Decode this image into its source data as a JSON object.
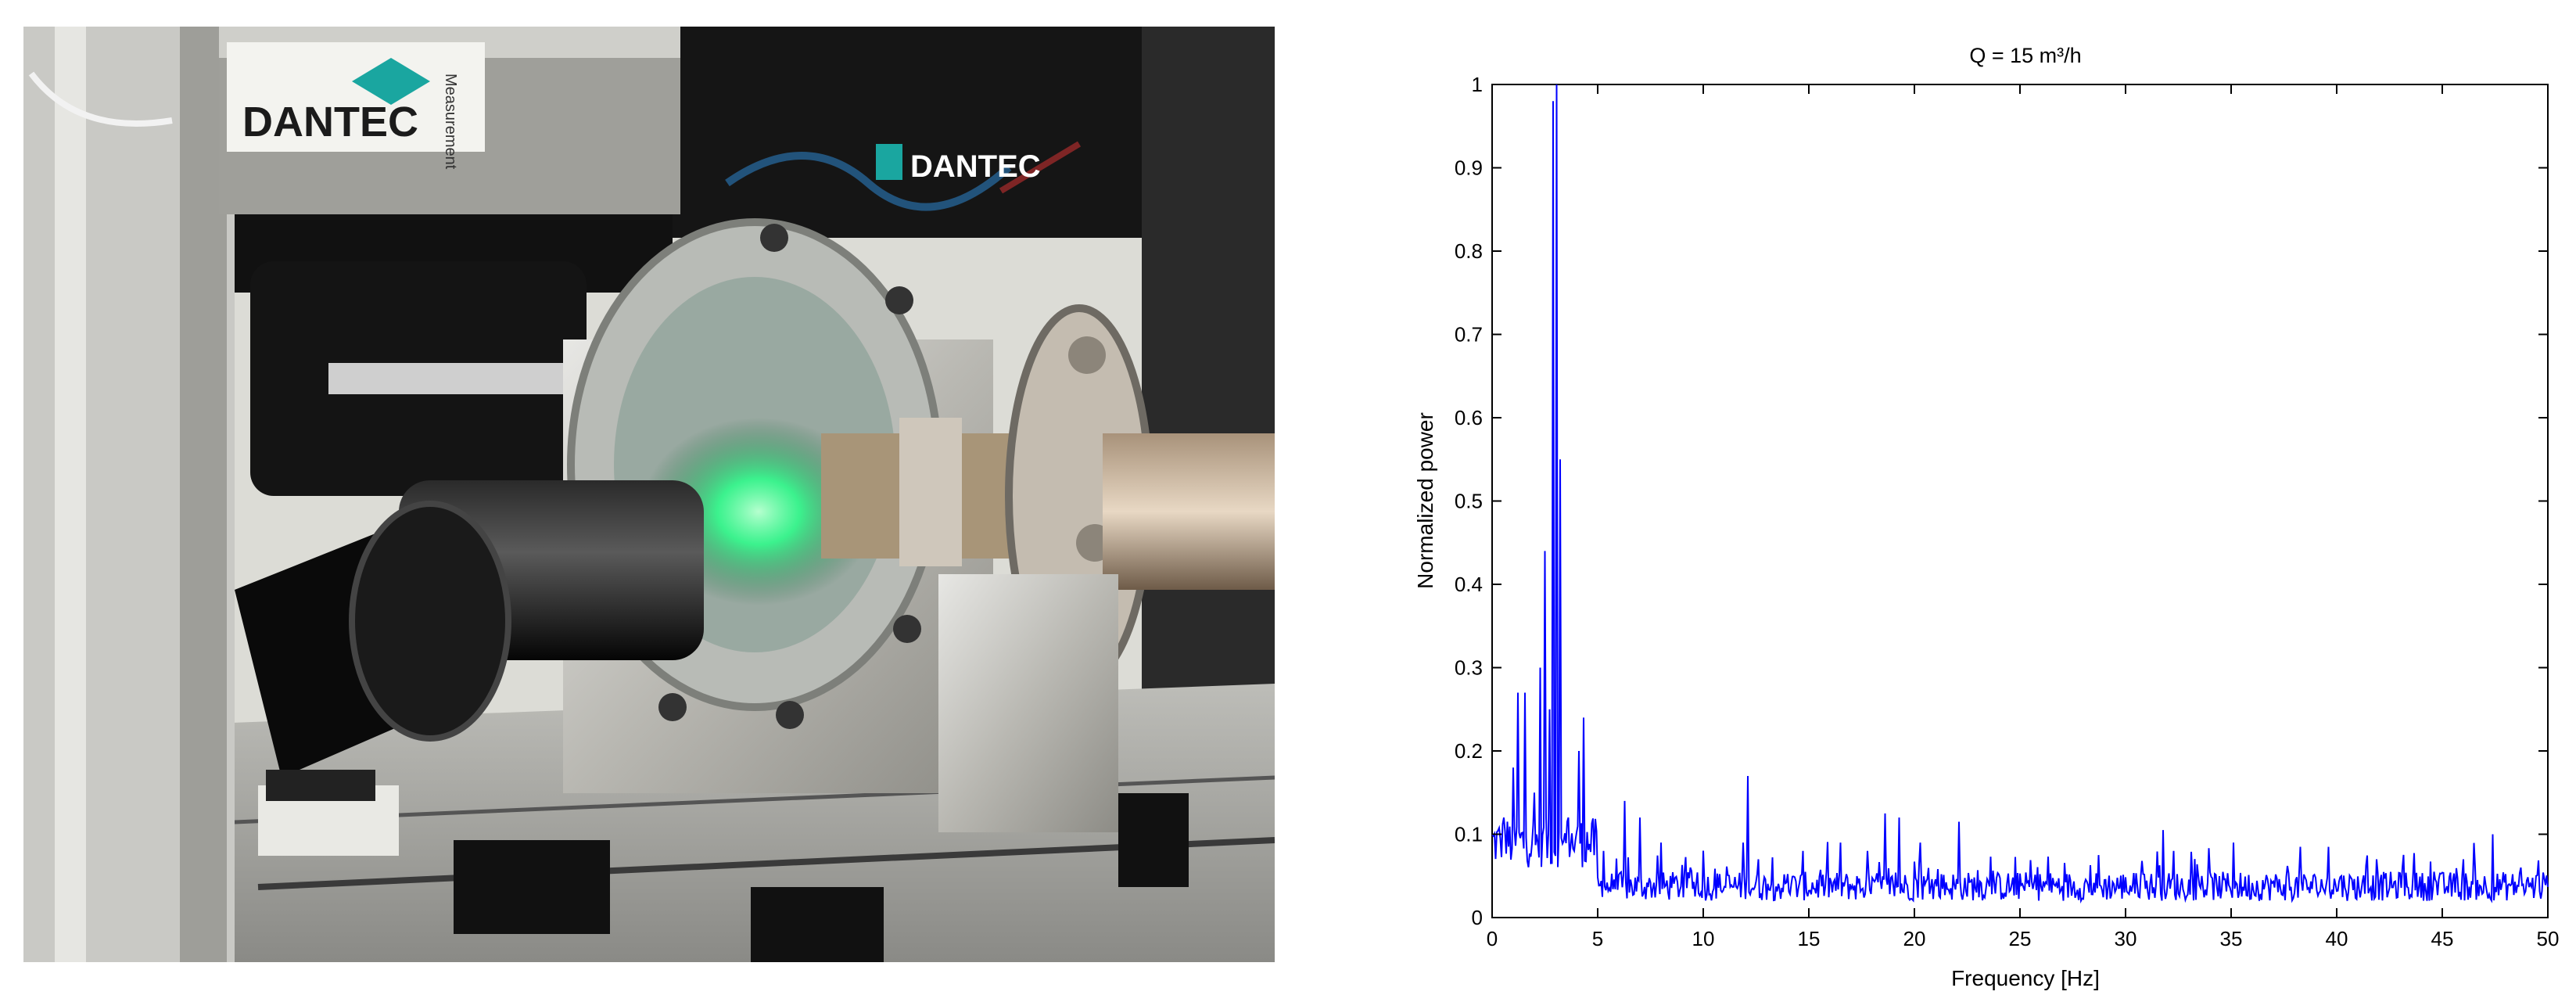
{
  "photo": {
    "brand_label": "DANTEC",
    "banner_label": "DANTEC",
    "sticker_label": "Measurement",
    "accent_green": "#2bff8a",
    "logo_color": "#1aa6a0"
  },
  "chart_data": {
    "type": "line",
    "title": "Q = 15 m³/h",
    "xlabel": "Frequency  [Hz]",
    "ylabel": "Normalized power",
    "xlim": [
      0,
      50
    ],
    "ylim": [
      0,
      1
    ],
    "xticks": [
      "0",
      "5",
      "10",
      "15",
      "20",
      "25",
      "30",
      "35",
      "40",
      "45",
      "50"
    ],
    "yticks": [
      "0",
      "0.1",
      "0.2",
      "0.3",
      "0.4",
      "0.5",
      "0.6",
      "0.7",
      "0.8",
      "0.9",
      "1"
    ],
    "grid": false,
    "series_color": "#0000ff",
    "peaks": [
      {
        "x": 0.2,
        "y": 0.1
      },
      {
        "x": 0.55,
        "y": 0.12
      },
      {
        "x": 1.0,
        "y": 0.18
      },
      {
        "x": 1.2,
        "y": 0.27
      },
      {
        "x": 1.55,
        "y": 0.27
      },
      {
        "x": 2.0,
        "y": 0.15
      },
      {
        "x": 2.3,
        "y": 0.3
      },
      {
        "x": 2.5,
        "y": 0.44
      },
      {
        "x": 2.75,
        "y": 0.25
      },
      {
        "x": 2.9,
        "y": 0.98
      },
      {
        "x": 3.05,
        "y": 1.0
      },
      {
        "x": 3.2,
        "y": 0.55
      },
      {
        "x": 3.6,
        "y": 0.12
      },
      {
        "x": 4.1,
        "y": 0.2
      },
      {
        "x": 4.35,
        "y": 0.24
      },
      {
        "x": 5.3,
        "y": 0.08
      },
      {
        "x": 6.3,
        "y": 0.14
      },
      {
        "x": 7.0,
        "y": 0.12
      },
      {
        "x": 8.0,
        "y": 0.09
      },
      {
        "x": 9.4,
        "y": 0.06
      },
      {
        "x": 11.9,
        "y": 0.09
      },
      {
        "x": 12.1,
        "y": 0.17
      },
      {
        "x": 12.6,
        "y": 0.07
      },
      {
        "x": 14.7,
        "y": 0.08
      },
      {
        "x": 16.5,
        "y": 0.09
      },
      {
        "x": 17.8,
        "y": 0.08
      },
      {
        "x": 18.6,
        "y": 0.125
      },
      {
        "x": 19.3,
        "y": 0.12
      },
      {
        "x": 20.3,
        "y": 0.09
      },
      {
        "x": 22.1,
        "y": 0.115
      },
      {
        "x": 24.0,
        "y": 0.04
      },
      {
        "x": 26.5,
        "y": 0.03
      },
      {
        "x": 28.7,
        "y": 0.075
      },
      {
        "x": 30.7,
        "y": 0.05
      },
      {
        "x": 31.8,
        "y": 0.105
      },
      {
        "x": 32.3,
        "y": 0.08
      },
      {
        "x": 33.6,
        "y": 0.05
      },
      {
        "x": 35.1,
        "y": 0.09
      },
      {
        "x": 36.5,
        "y": 0.045
      },
      {
        "x": 38.3,
        "y": 0.085
      },
      {
        "x": 40.2,
        "y": 0.05
      },
      {
        "x": 41.9,
        "y": 0.07
      },
      {
        "x": 43.1,
        "y": 0.06
      },
      {
        "x": 44.6,
        "y": 0.055
      },
      {
        "x": 46.0,
        "y": 0.07
      },
      {
        "x": 47.4,
        "y": 0.1
      },
      {
        "x": 48.7,
        "y": 0.06
      },
      {
        "x": 49.5,
        "y": 0.04
      }
    ]
  }
}
